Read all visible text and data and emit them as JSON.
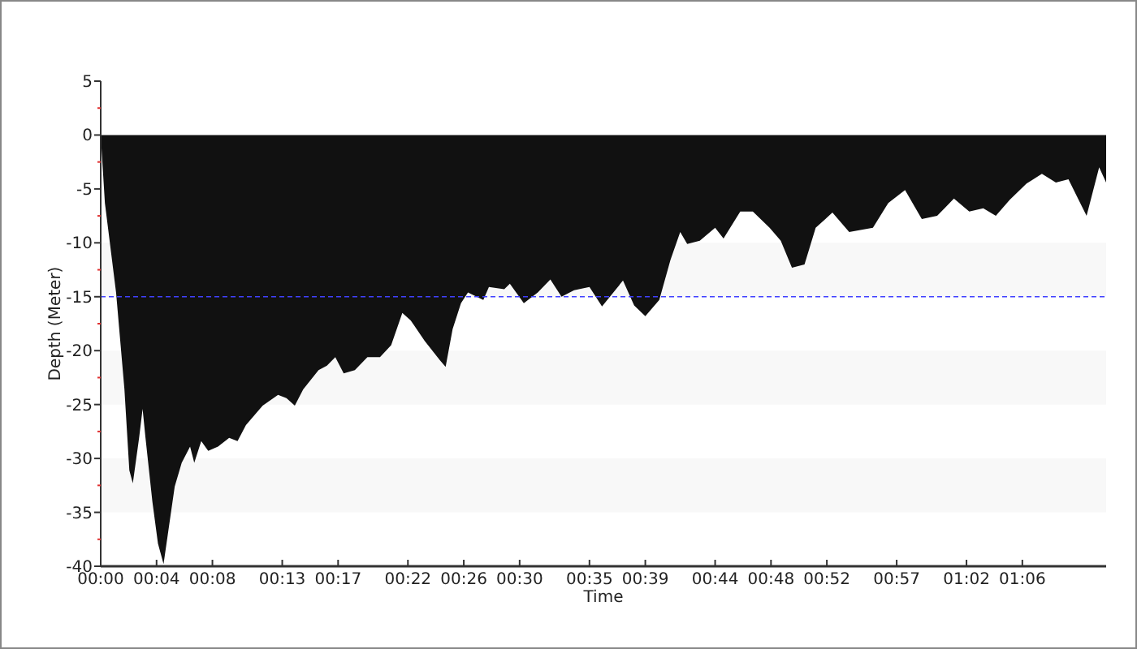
{
  "chart_data": {
    "type": "area",
    "xlabel": "Time",
    "ylabel": "Depth (Meter)",
    "x": [
      0,
      0.3,
      1.1,
      1.7,
      2.05,
      2.3,
      2.75,
      3.0,
      3.2,
      3.7,
      4.1,
      4.5,
      4.8,
      5.3,
      5.8,
      6.4,
      6.7,
      7.2,
      7.7,
      8.4,
      9.2,
      9.8,
      10.4,
      11.6,
      12.7,
      13.3,
      13.9,
      14.5,
      15.6,
      16.2,
      16.8,
      17.4,
      18.2,
      19.1,
      20.0,
      20.8,
      21.6,
      22.2,
      23.2,
      24.3,
      24.7,
      25.2,
      25.8,
      26.3,
      27.4,
      27.8,
      28.9,
      29.3,
      30.3,
      31.3,
      32.2,
      33.0,
      33.9,
      35.0,
      35.9,
      37.4,
      38.2,
      39.0,
      40.0,
      40.8,
      41.5,
      42.0,
      42.9,
      44.0,
      44.6,
      45.8,
      46.7,
      47.9,
      48.7,
      49.5,
      50.4,
      51.2,
      52.4,
      53.6,
      55.3,
      56.4,
      57.6,
      58.8,
      59.9,
      61.1,
      62.2,
      63.2,
      64.1,
      65.1,
      66.3,
      67.4,
      68.4,
      69.3,
      70.6,
      71.5,
      72
    ],
    "series": [
      {
        "color": "#111111",
        "values": [
          0,
          -6.3,
          -14.6,
          -23.6,
          -31.1,
          -32.3,
          -28.1,
          -25.4,
          -28,
          -34,
          -37.9,
          -39.8,
          -37.1,
          -32.6,
          -30.4,
          -28.9,
          -30.4,
          -28.4,
          -29.3,
          -28.9,
          -28.1,
          -28.4,
          -26.9,
          -25.1,
          -24.1,
          -24.4,
          -25.1,
          -23.6,
          -21.8,
          -21.4,
          -20.6,
          -22.1,
          -21.8,
          -20.6,
          -20.6,
          -19.5,
          -16.5,
          -17.2,
          -19.1,
          -20.9,
          -21.5,
          -18,
          -15.6,
          -14.6,
          -15.3,
          -14.1,
          -14.3,
          -13.8,
          -15.6,
          -14.6,
          -13.4,
          -15,
          -14.4,
          -14.1,
          -15.9,
          -13.5,
          -15.8,
          -16.8,
          -15.3,
          -11.6,
          -9,
          -10.1,
          -9.8,
          -8.6,
          -9.6,
          -7.1,
          -7.1,
          -8.6,
          -9.8,
          -12.3,
          -12,
          -8.6,
          -7.2,
          -9,
          -8.6,
          -6.3,
          -5.1,
          -7.8,
          -7.5,
          -5.9,
          -7.1,
          -6.8,
          -7.5,
          -6,
          -4.5,
          -3.6,
          -4.4,
          -4.1,
          -7.5,
          -3,
          -4.4
        ]
      }
    ],
    "xlim": [
      0,
      72
    ],
    "xticks": [
      {
        "value": 0,
        "label": "00:00"
      },
      {
        "value": 4,
        "label": "00:04"
      },
      {
        "value": 8,
        "label": "00:08"
      },
      {
        "value": 13,
        "label": "00:13"
      },
      {
        "value": 17,
        "label": "00:17"
      },
      {
        "value": 22,
        "label": "00:22"
      },
      {
        "value": 26,
        "label": "00:26"
      },
      {
        "value": 30,
        "label": "00:30"
      },
      {
        "value": 35,
        "label": "00:35"
      },
      {
        "value": 39,
        "label": "00:39"
      },
      {
        "value": 44,
        "label": "00:44"
      },
      {
        "value": 48,
        "label": "00:48"
      },
      {
        "value": 52,
        "label": "00:52"
      },
      {
        "value": 57,
        "label": "00:57"
      },
      {
        "value": 62,
        "label": "01:02"
      },
      {
        "value": 66,
        "label": "01:06"
      }
    ],
    "ylim": [
      -40,
      5
    ],
    "yticks": [
      -40,
      {
        "value": -37.5,
        "label": null
      },
      -35,
      {
        "value": -32.5,
        "label": null
      },
      -30,
      {
        "value": -27.5,
        "label": null
      },
      -25,
      {
        "value": -22.5,
        "label": null
      },
      -20,
      {
        "value": -17.5,
        "label": null
      },
      -15,
      {
        "value": -12.5,
        "label": null
      },
      -10,
      {
        "value": -7.5,
        "label": null
      },
      -5,
      {
        "value": -2.5,
        "label": null
      },
      0,
      {
        "value": 2.5,
        "label": null
      },
      5
    ],
    "bands": [
      {
        "axis": "y",
        "from": -15,
        "to": -10,
        "color": "#f8f8f8"
      },
      {
        "axis": "y",
        "from": -25,
        "to": -20,
        "color": "#f8f8f8"
      },
      {
        "axis": "y",
        "from": -35,
        "to": -30,
        "color": "#f8f8f8"
      }
    ],
    "ref_lines": [
      {
        "axis": "y",
        "value": -15,
        "color": "#4040ff",
        "line_style": "dashed"
      }
    ],
    "grid": false
  }
}
